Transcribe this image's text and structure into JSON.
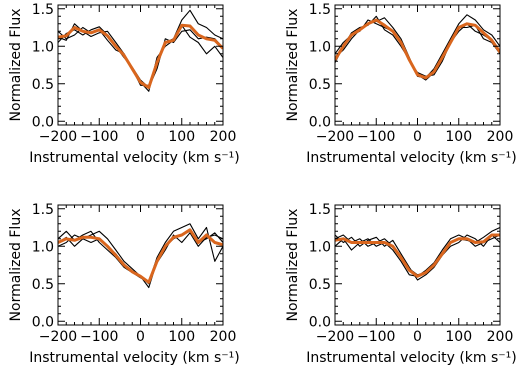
{
  "figure": {
    "panel_count": 4
  },
  "colors": {
    "axes": "#000000",
    "observed_lines": "#000000",
    "model_line": "#d9661e",
    "background": "#ffffff"
  },
  "chart_data": [
    {
      "type": "line",
      "title": "",
      "xlabel": "Instrumental velocity (km s⁻¹)",
      "ylabel": "Normalized Flux",
      "xlim": [
        -200,
        200
      ],
      "ylim": [
        -0.05,
        1.55
      ],
      "xticks": [
        "−200",
        "−100",
        "0",
        "100",
        "200"
      ],
      "yticks": [
        "0.0",
        "0.5",
        "1.0",
        "1.5"
      ],
      "x": [
        -200,
        -180,
        -160,
        -140,
        -120,
        -100,
        -80,
        -60,
        -40,
        -20,
        0,
        20,
        40,
        60,
        80,
        100,
        120,
        140,
        160,
        180,
        200
      ],
      "series": [
        {
          "color": "#000000",
          "values": [
            1.05,
            1.17,
            1.22,
            1.15,
            1.22,
            1.26,
            1.15,
            1.0,
            0.85,
            0.72,
            0.55,
            0.45,
            0.7,
            1.1,
            1.05,
            1.2,
            1.22,
            1.1,
            1.12,
            1.1,
            0.98
          ]
        },
        {
          "color": "#000000",
          "values": [
            1.12,
            1.08,
            1.3,
            1.2,
            1.13,
            1.18,
            1.2,
            1.05,
            0.9,
            0.7,
            0.48,
            0.48,
            0.78,
            1.05,
            1.1,
            1.35,
            1.48,
            1.3,
            1.25,
            1.15,
            1.1
          ]
        },
        {
          "color": "#000000",
          "values": [
            1.2,
            1.1,
            1.15,
            1.25,
            1.18,
            1.22,
            1.08,
            0.95,
            0.9,
            0.68,
            0.52,
            0.4,
            0.85,
            1.0,
            1.08,
            1.28,
            1.12,
            1.05,
            0.9,
            1.0,
            0.85
          ]
        },
        {
          "color": "#d9661e",
          "values": [
            1.12,
            1.14,
            1.25,
            1.2,
            1.18,
            1.22,
            1.14,
            1.0,
            0.88,
            0.7,
            0.52,
            0.45,
            0.78,
            1.05,
            1.08,
            1.28,
            1.27,
            1.15,
            1.1,
            1.08,
            0.97
          ]
        }
      ]
    },
    {
      "type": "line",
      "title": "",
      "xlabel": "Instrumental velocity (km s⁻¹)",
      "ylabel": "Normalized Flux",
      "xlim": [
        -200,
        200
      ],
      "ylim": [
        -0.05,
        1.55
      ],
      "xticks": [
        "−200",
        "−100",
        "0",
        "100",
        "200"
      ],
      "yticks": [
        "0.0",
        "0.5",
        "1.0",
        "1.5"
      ],
      "x": [
        -200,
        -180,
        -160,
        -140,
        -120,
        -100,
        -80,
        -60,
        -40,
        -20,
        0,
        20,
        40,
        60,
        80,
        100,
        120,
        140,
        160,
        180,
        200
      ],
      "series": [
        {
          "color": "#000000",
          "values": [
            0.78,
            1.0,
            1.18,
            1.25,
            1.28,
            1.4,
            1.22,
            1.15,
            1.0,
            0.82,
            0.62,
            0.55,
            0.65,
            0.85,
            1.05,
            1.25,
            1.25,
            1.28,
            1.1,
            1.05,
            0.9
          ]
        },
        {
          "color": "#000000",
          "values": [
            0.85,
            0.95,
            1.1,
            1.22,
            1.3,
            1.33,
            1.38,
            1.25,
            1.1,
            0.85,
            0.6,
            0.58,
            0.7,
            0.9,
            1.1,
            1.3,
            1.42,
            1.35,
            1.22,
            1.15,
            1.0
          ]
        },
        {
          "color": "#000000",
          "values": [
            0.9,
            1.05,
            1.15,
            1.2,
            1.35,
            1.3,
            1.25,
            1.2,
            1.05,
            0.8,
            0.65,
            0.6,
            0.62,
            0.8,
            1.05,
            1.2,
            1.3,
            1.2,
            1.15,
            1.08,
            0.92
          ]
        },
        {
          "color": "#d9661e",
          "values": [
            0.82,
            1.0,
            1.15,
            1.22,
            1.3,
            1.35,
            1.28,
            1.2,
            1.05,
            0.82,
            0.62,
            0.58,
            0.66,
            0.85,
            1.05,
            1.25,
            1.3,
            1.28,
            1.18,
            1.08,
            0.92
          ]
        }
      ]
    },
    {
      "type": "line",
      "title": "",
      "xlabel": "Instrumental velocity (km s⁻¹)",
      "ylabel": "Normalized Flux",
      "xlim": [
        -200,
        200
      ],
      "ylim": [
        -0.05,
        1.55
      ],
      "xticks": [
        "−200",
        "−100",
        "0",
        "100",
        "200"
      ],
      "yticks": [
        "0.0",
        "0.5",
        "1.0",
        "1.5"
      ],
      "x": [
        -200,
        -180,
        -160,
        -140,
        -120,
        -100,
        -80,
        -60,
        -40,
        -20,
        0,
        20,
        40,
        60,
        80,
        100,
        120,
        140,
        160,
        180,
        200
      ],
      "series": [
        {
          "color": "#000000",
          "values": [
            1.05,
            1.12,
            1.0,
            1.1,
            1.15,
            1.2,
            1.1,
            0.95,
            0.8,
            0.7,
            0.6,
            0.45,
            0.8,
            1.0,
            1.1,
            1.15,
            1.2,
            1.05,
            1.1,
            1.18,
            1.05
          ]
        },
        {
          "color": "#000000",
          "values": [
            1.0,
            1.05,
            1.15,
            1.1,
            1.05,
            1.1,
            1.0,
            0.9,
            0.75,
            0.65,
            0.58,
            0.52,
            0.85,
            1.05,
            1.2,
            1.25,
            1.3,
            1.1,
            1.25,
            0.8,
            1.0
          ]
        },
        {
          "color": "#000000",
          "values": [
            1.1,
            1.2,
            1.08,
            1.15,
            1.2,
            1.05,
            0.95,
            0.85,
            0.72,
            0.65,
            0.6,
            0.5,
            0.78,
            0.95,
            1.15,
            1.05,
            1.18,
            1.0,
            1.12,
            1.15,
            1.1
          ]
        },
        {
          "color": "#d9661e",
          "values": [
            1.05,
            1.1,
            1.08,
            1.12,
            1.12,
            1.1,
            1.0,
            0.88,
            0.75,
            0.66,
            0.6,
            0.52,
            0.8,
            1.0,
            1.12,
            1.15,
            1.22,
            1.05,
            1.15,
            1.05,
            1.02
          ]
        }
      ]
    },
    {
      "type": "line",
      "title": "",
      "xlabel": "Instrumental velocity (km s⁻¹)",
      "ylabel": "Normalized Flux",
      "xlim": [
        -200,
        200
      ],
      "ylim": [
        -0.05,
        1.55
      ],
      "xticks": [
        "−200",
        "−100",
        "0",
        "100",
        "200"
      ],
      "yticks": [
        "0.0",
        "0.5",
        "1.0",
        "1.5"
      ],
      "x": [
        -200,
        -180,
        -160,
        -140,
        -120,
        -100,
        -80,
        -60,
        -40,
        -20,
        0,
        20,
        40,
        60,
        80,
        100,
        120,
        140,
        160,
        180,
        200
      ],
      "series": [
        {
          "color": "#000000",
          "values": [
            1.1,
            1.15,
            1.05,
            1.1,
            1.0,
            1.05,
            1.1,
            1.0,
            0.85,
            0.7,
            0.62,
            0.65,
            0.75,
            0.9,
            1.05,
            1.1,
            1.08,
            1.05,
            1.12,
            1.2,
            1.25
          ]
        },
        {
          "color": "#000000",
          "values": [
            1.0,
            1.1,
            0.95,
            1.05,
            1.1,
            1.0,
            1.05,
            0.95,
            0.8,
            0.62,
            0.6,
            0.68,
            0.78,
            0.95,
            1.1,
            1.15,
            1.1,
            1.0,
            1.05,
            1.1,
            1.15
          ]
        },
        {
          "color": "#000000",
          "values": [
            1.15,
            1.05,
            1.12,
            1.0,
            1.08,
            1.12,
            1.0,
            1.08,
            0.9,
            0.72,
            0.55,
            0.62,
            0.72,
            0.88,
            1.0,
            1.05,
            1.15,
            1.1,
            1.0,
            1.15,
            1.05
          ]
        },
        {
          "color": "#d9661e",
          "values": [
            1.08,
            1.1,
            1.05,
            1.05,
            1.05,
            1.05,
            1.05,
            1.0,
            0.85,
            0.68,
            0.6,
            0.65,
            0.75,
            0.9,
            1.05,
            1.1,
            1.1,
            1.05,
            1.06,
            1.15,
            1.15
          ]
        }
      ]
    }
  ]
}
